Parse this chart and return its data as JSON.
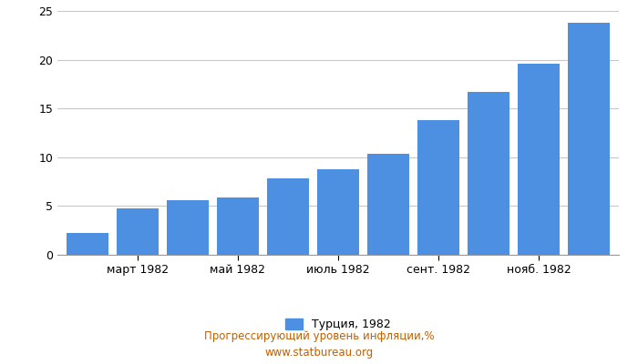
{
  "values": [
    2.2,
    4.8,
    5.6,
    5.9,
    7.8,
    8.8,
    10.4,
    13.8,
    16.7,
    19.6,
    23.8
  ],
  "n_bars": 11,
  "xtick_labels": [
    "март 1982",
    "май 1982",
    "июль 1982",
    "сент. 1982",
    "нояб. 1982"
  ],
  "xtick_positions": [
    1,
    3,
    5,
    7,
    9
  ],
  "bar_color": "#4d8fe0",
  "ylim": [
    0,
    25
  ],
  "yticks": [
    0,
    5,
    10,
    15,
    20,
    25
  ],
  "legend_label": "Турция, 1982",
  "footer_line1": "Прогрессирующий уровень инфляции,%",
  "footer_line2": "www.statbureau.org",
  "background_color": "#ffffff",
  "grid_color": "#c8c8c8",
  "footer_color": "#c06000"
}
